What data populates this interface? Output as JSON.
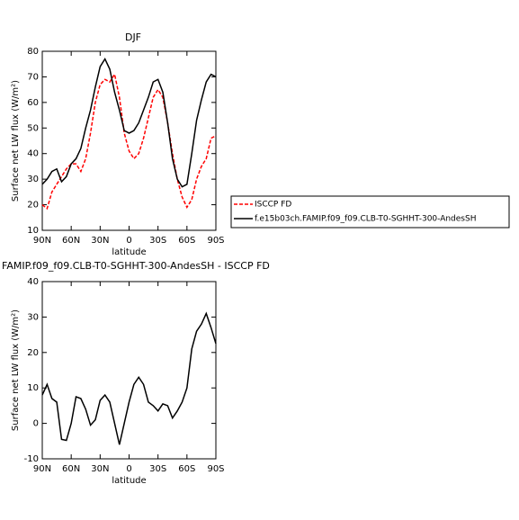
{
  "chart_data": [
    {
      "type": "line",
      "title": "DJF",
      "xlabel": "latitude",
      "ylabel": "Surface net LW flux (W/m²)",
      "x": [
        90,
        85,
        80,
        75,
        70,
        65,
        60,
        55,
        50,
        45,
        40,
        35,
        30,
        25,
        20,
        15,
        10,
        5,
        0,
        -5,
        -10,
        -15,
        -20,
        -25,
        -30,
        -35,
        -40,
        -45,
        -50,
        -55,
        -60,
        -65,
        -70,
        -75,
        -80,
        -85,
        -90
      ],
      "xlim": [
        90,
        -90
      ],
      "xticks": [
        {
          "value": 90,
          "label": "90N"
        },
        {
          "value": 60,
          "label": "60N"
        },
        {
          "value": 30,
          "label": "30N"
        },
        0,
        {
          "value": -30,
          "label": "30S"
        },
        {
          "value": -60,
          "label": "60S"
        },
        {
          "value": -90,
          "label": "90S"
        }
      ],
      "ylim": [
        10,
        80
      ],
      "yticks": [
        10,
        20,
        30,
        40,
        50,
        60,
        70,
        80
      ],
      "legend": "right",
      "series": [
        {
          "name": "ISCCP FD",
          "color": "#ff0000",
          "dashed": true,
          "values": [
            20,
            18.5,
            25,
            28,
            31,
            34,
            36,
            36,
            33,
            38,
            48,
            60,
            67,
            69,
            68,
            71,
            62,
            48,
            41,
            38,
            40,
            46,
            54,
            62,
            65,
            62,
            52,
            40,
            30,
            23,
            19,
            22,
            30,
            35,
            38,
            46,
            47
          ]
        },
        {
          "name": "f.e15b03ch.FAMIP.f09_f09.CLB-T0-SGHHT-300-AndesSH",
          "color": "#000000",
          "dashed": false,
          "values": [
            28,
            30,
            33,
            34,
            29,
            31,
            36,
            38,
            42,
            50,
            57,
            66,
            74,
            77,
            73,
            64,
            57,
            49,
            48,
            49,
            52,
            57,
            62,
            68,
            69,
            64,
            52,
            38,
            30,
            27,
            28,
            40,
            53,
            61,
            68,
            71,
            70
          ]
        }
      ]
    },
    {
      "type": "line",
      "title": "FAMIP.f09_f09.CLB-T0-SGHHT-300-AndesSH - ISCCP FD",
      "xlabel": "latitude",
      "ylabel": "Surface net LW flux (W/m²)",
      "x": [
        90,
        85,
        80,
        75,
        70,
        65,
        60,
        55,
        50,
        45,
        40,
        35,
        30,
        25,
        20,
        15,
        10,
        5,
        0,
        -5,
        -10,
        -15,
        -20,
        -25,
        -30,
        -35,
        -40,
        -45,
        -50,
        -55,
        -60,
        -65,
        -70,
        -75,
        -80,
        -85,
        -90
      ],
      "xlim": [
        90,
        -90
      ],
      "xticks": [
        {
          "value": 90,
          "label": "90N"
        },
        {
          "value": 60,
          "label": "60N"
        },
        {
          "value": 30,
          "label": "30N"
        },
        0,
        {
          "value": -30,
          "label": "30S"
        },
        {
          "value": -60,
          "label": "60S"
        },
        {
          "value": -90,
          "label": "90S"
        }
      ],
      "ylim": [
        -10,
        40
      ],
      "yticks": [
        -10,
        0,
        10,
        20,
        30,
        40
      ],
      "series": [
        {
          "name": null,
          "color": "#000000",
          "dashed": false,
          "values": [
            8,
            11,
            7,
            6,
            -4.5,
            -4.8,
            0,
            7.5,
            7,
            4,
            -0.5,
            1,
            6.5,
            8,
            6,
            0,
            -6,
            0,
            6,
            11,
            13,
            11,
            6,
            5,
            3.5,
            5.5,
            5,
            1.5,
            3.5,
            6,
            10,
            21,
            26,
            28,
            31,
            27,
            22.5
          ]
        }
      ]
    }
  ]
}
